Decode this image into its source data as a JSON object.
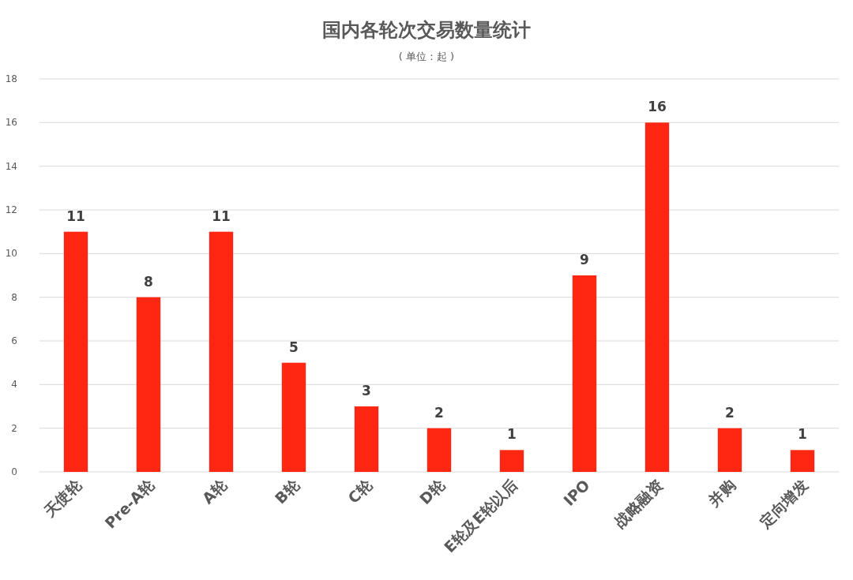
{
  "chart_data": {
    "type": "bar",
    "title": "国内各轮次交易数量统计",
    "subtitle": "( 单位：起 )",
    "categories": [
      "天使轮",
      "Pre-A轮",
      "A轮",
      "B轮",
      "C轮",
      "D轮",
      "E轮及E轮以后",
      "IPO",
      "战略融资",
      "并购",
      "定向增发"
    ],
    "values": [
      11,
      8,
      11,
      5,
      3,
      2,
      1,
      9,
      16,
      2,
      1
    ],
    "color": "#ff2612",
    "ylim": [
      0,
      18
    ],
    "yticks": [
      0,
      2,
      4,
      6,
      8,
      10,
      12,
      14,
      16,
      18
    ],
    "grid": "y",
    "data_labels": true
  }
}
